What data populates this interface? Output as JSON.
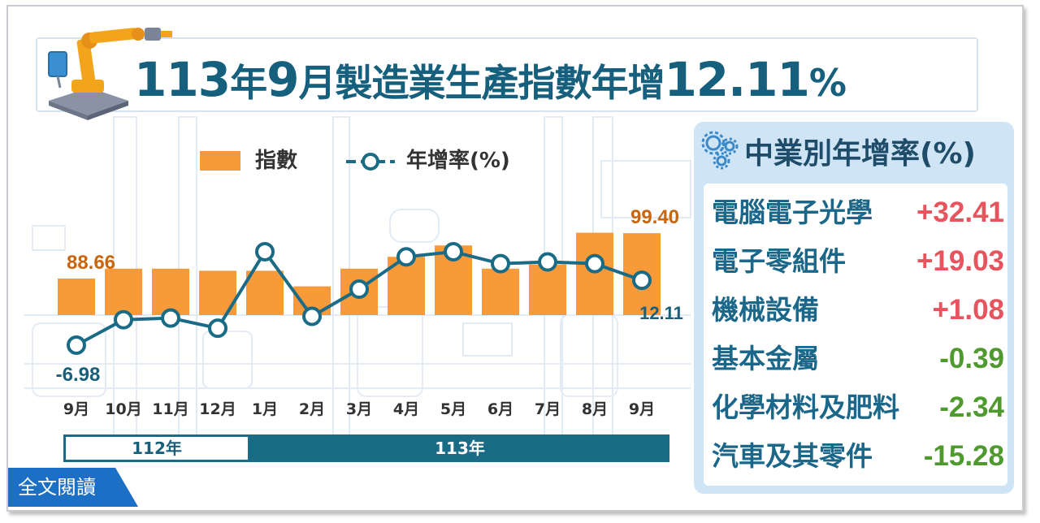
{
  "title": {
    "part1": "113",
    "part2": "年",
    "part3": "9",
    "part4": "月製造業生產指數",
    "part5": "年增",
    "part6": "12.11",
    "part7": "%"
  },
  "chart_data": {
    "type": "bar",
    "categories": [
      "9月",
      "10月",
      "11月",
      "12月",
      "1月",
      "2月",
      "3月",
      "4月",
      "5月",
      "6月",
      "7月",
      "8月",
      "9月"
    ],
    "series": [
      {
        "name": "指數",
        "type": "bar",
        "color": "#f89a3a",
        "values": [
          88.66,
          91.0,
          91.0,
          90.5,
          90.5,
          86.8,
          91.0,
          93.8,
          96.5,
          91.0,
          92.0,
          99.5,
          99.4
        ]
      },
      {
        "name": "年增率(%)",
        "type": "line",
        "color": "#1a6b86",
        "values": [
          -6.98,
          0.5,
          1.0,
          -2.0,
          20.5,
          1.5,
          9.5,
          19.0,
          20.5,
          17.0,
          17.5,
          17.0,
          12.11
        ]
      }
    ],
    "data_labels": {
      "bar_first": "88.66",
      "bar_last": "99.40",
      "line_first": "-6.98",
      "line_last": "12.11"
    },
    "legend": {
      "bar_label": "指數",
      "line_label": "年增率(%)",
      "placement": "top"
    },
    "year_groups": [
      {
        "label": "112年",
        "count": 4
      },
      {
        "label": "113年",
        "count": 9
      }
    ]
  },
  "panel": {
    "title": "中業別年增率(%)",
    "rows": [
      {
        "name": "電腦電子光學",
        "value": "+32.41",
        "color": "#e8545e"
      },
      {
        "name": "電子零組件",
        "value": "+19.03",
        "color": "#e8545e"
      },
      {
        "name": "機械設備",
        "value": "+1.08",
        "color": "#e8545e"
      },
      {
        "name": "基本金屬",
        "value": "-0.39",
        "color": "#4f9a2e"
      },
      {
        "name": "化學材料及肥料",
        "value": "-2.34",
        "color": "#4f9a2e"
      },
      {
        "name": "汽車及其零件",
        "value": "-15.28",
        "color": "#4f9a2e"
      }
    ]
  },
  "colors": {
    "bar": "#f89a3a",
    "bar_label": "#c8650e",
    "line": "#1a6b86",
    "positive": "#e8545e",
    "negative": "#4f9a2e"
  },
  "read_button": "全文閱讀"
}
